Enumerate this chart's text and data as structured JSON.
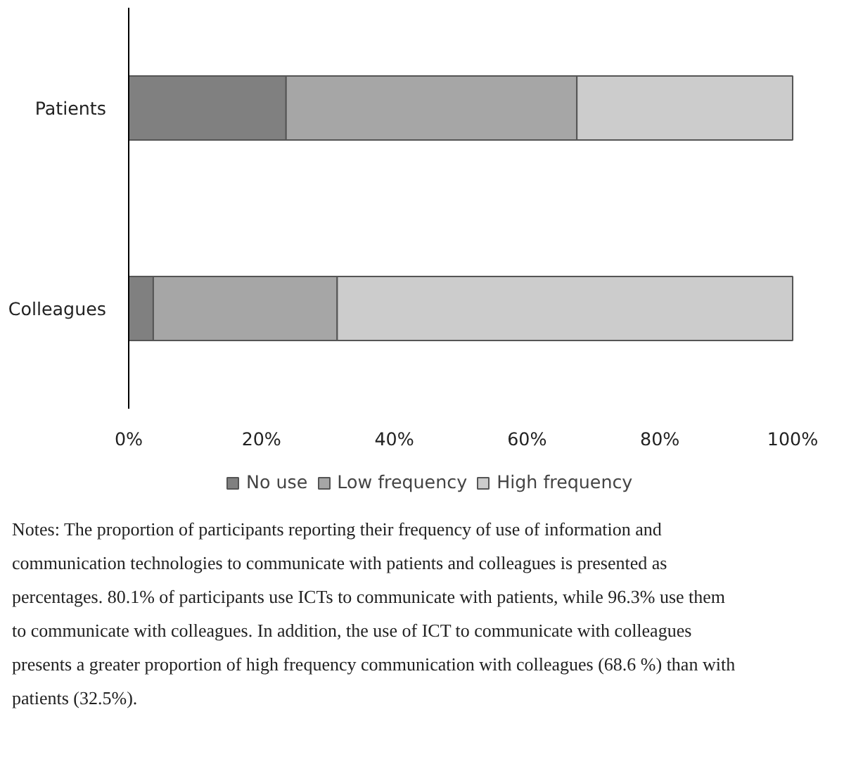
{
  "chart_data": {
    "type": "bar",
    "orientation": "horizontal",
    "stacked": true,
    "categories": [
      "Patients",
      "Colleagues"
    ],
    "series": [
      {
        "name": "No use",
        "color": "#808080",
        "values": [
          23.7,
          3.7
        ]
      },
      {
        "name": "Low frequency",
        "color": "#a6a6a6",
        "values": [
          43.8,
          27.7
        ]
      },
      {
        "name": "High frequency",
        "color": "#cccccc",
        "values": [
          32.5,
          68.6
        ]
      }
    ],
    "xlim": [
      0,
      100
    ],
    "xticks": [
      {
        "value": 0,
        "label": "0%"
      },
      {
        "value": 20,
        "label": "20%"
      },
      {
        "value": 40,
        "label": "40%"
      },
      {
        "value": 60,
        "label": "60%"
      },
      {
        "value": 80,
        "label": "80%"
      },
      {
        "value": 100,
        "label": "100%"
      }
    ],
    "grid": false,
    "legend": "bottom",
    "annotations": [
      "Notes: The proportion of participants reporting their frequency of use of information and communication technologies to communicate with patients and colleagues is presented as percentages. 80.1% of participants use ICTs to communicate with patients, while 96.3% use them to communicate with colleagues. In addition, the use of ICT to communicate with colleagues presents a greater proportion of high frequency communication with colleagues (68.6 %) than with patients (32.5%)."
    ]
  }
}
